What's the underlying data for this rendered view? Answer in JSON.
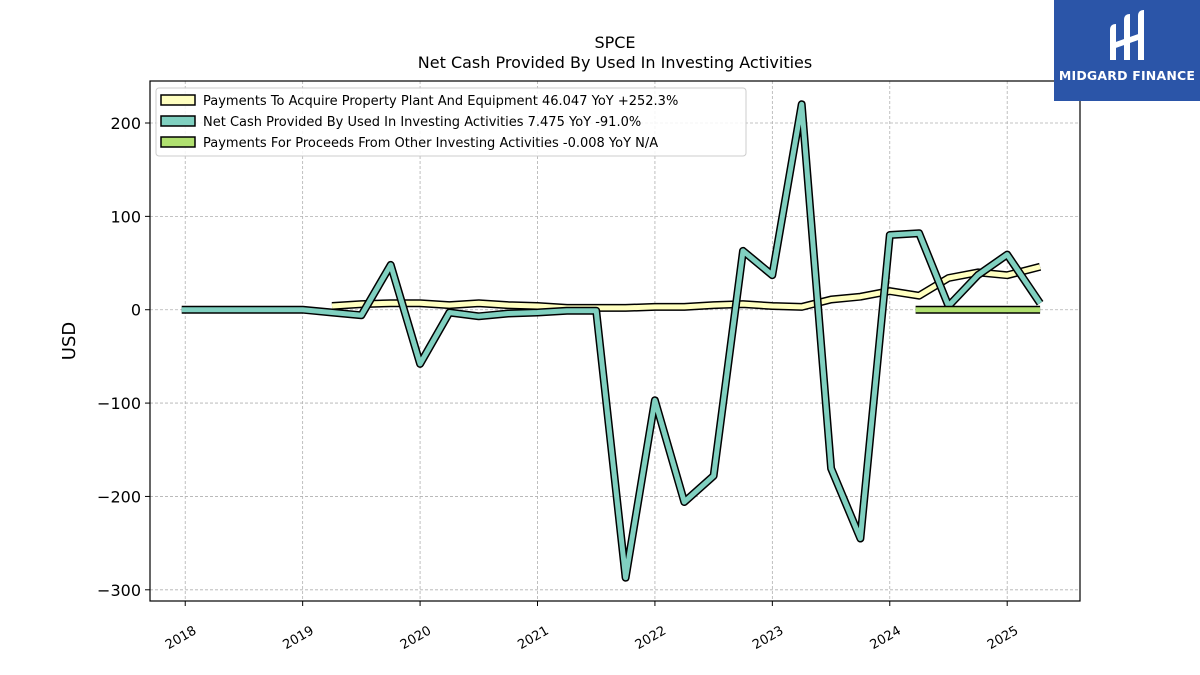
{
  "brand": {
    "name": "MIDGARD FINANCE",
    "bg": "#2b55a8"
  },
  "chart_data": {
    "type": "line",
    "title": "SPCE",
    "subtitle": "Net Cash Provided By Used In Investing Activities",
    "xlabel": "",
    "ylabel": "USD",
    "xlim": [
      2017.7,
      2025.62
    ],
    "ylim": [
      -312,
      245
    ],
    "yticks": [
      -300,
      -200,
      -100,
      0,
      100,
      200
    ],
    "ytick_labels": [
      "−300",
      "−200",
      "−100",
      "0",
      "100",
      "200"
    ],
    "xticks": [
      2018,
      2019,
      2020,
      2021,
      2022,
      2023,
      2024,
      2025
    ],
    "xtick_labels": [
      "2018",
      "2019",
      "2020",
      "2021",
      "2022",
      "2023",
      "2024",
      "2025"
    ],
    "grid": true,
    "legend_position": "top-left",
    "series": [
      {
        "name": "Payments To Acquire Property Plant And Equipment",
        "legend_label": "Payments To Acquire Property Plant And Equipment  46.047 YoY +252.3%",
        "color": "#ffffc0",
        "x": [
          2019.25,
          2019.5,
          2019.75,
          2020.0,
          2020.25,
          2020.5,
          2020.75,
          2021.0,
          2021.25,
          2021.5,
          2021.75,
          2022.0,
          2022.25,
          2022.5,
          2022.75,
          2023.0,
          2023.25,
          2023.5,
          2023.75,
          2024.0,
          2024.25,
          2024.5,
          2024.75,
          2025.0,
          2025.28
        ],
        "y": [
          4,
          6,
          7,
          7,
          5,
          7,
          5,
          4,
          2,
          2,
          2,
          3,
          3,
          5,
          6,
          4,
          3,
          11,
          14,
          20,
          15,
          34,
          40,
          37,
          46
        ]
      },
      {
        "name": "Net Cash Provided By Used In Investing Activities",
        "legend_label": "Net Cash Provided By Used In Investing Activities  7.475 YoY -91.0%",
        "color": "#80d0c0",
        "x": [
          2017.97,
          2018.25,
          2018.5,
          2018.75,
          2019.0,
          2019.25,
          2019.5,
          2019.75,
          2020.0,
          2020.25,
          2020.5,
          2020.75,
          2021.0,
          2021.25,
          2021.5,
          2021.75,
          2022.0,
          2022.25,
          2022.5,
          2022.75,
          2023.0,
          2023.25,
          2023.5,
          2023.75,
          2024.0,
          2024.25,
          2024.5,
          2024.75,
          2025.0,
          2025.28
        ],
        "y": [
          0,
          0,
          0,
          0,
          0,
          -3,
          -6,
          48,
          -58,
          -3,
          -7,
          -4,
          -3,
          -1,
          -1,
          -287,
          -97,
          -206,
          -178,
          63,
          37,
          220,
          -170,
          -245,
          80,
          82,
          4,
          37,
          59,
          7
        ]
      },
      {
        "name": "Payments For Proceeds From Other Investing Activities",
        "legend_label": "Payments For Proceeds From Other Investing Activities  -0.008 YoY N/A",
        "color": "#b0e070",
        "x": [
          2024.22,
          2024.5,
          2024.75,
          2025.0,
          2025.28
        ],
        "y": [
          0,
          0,
          0,
          0,
          0
        ]
      }
    ]
  }
}
